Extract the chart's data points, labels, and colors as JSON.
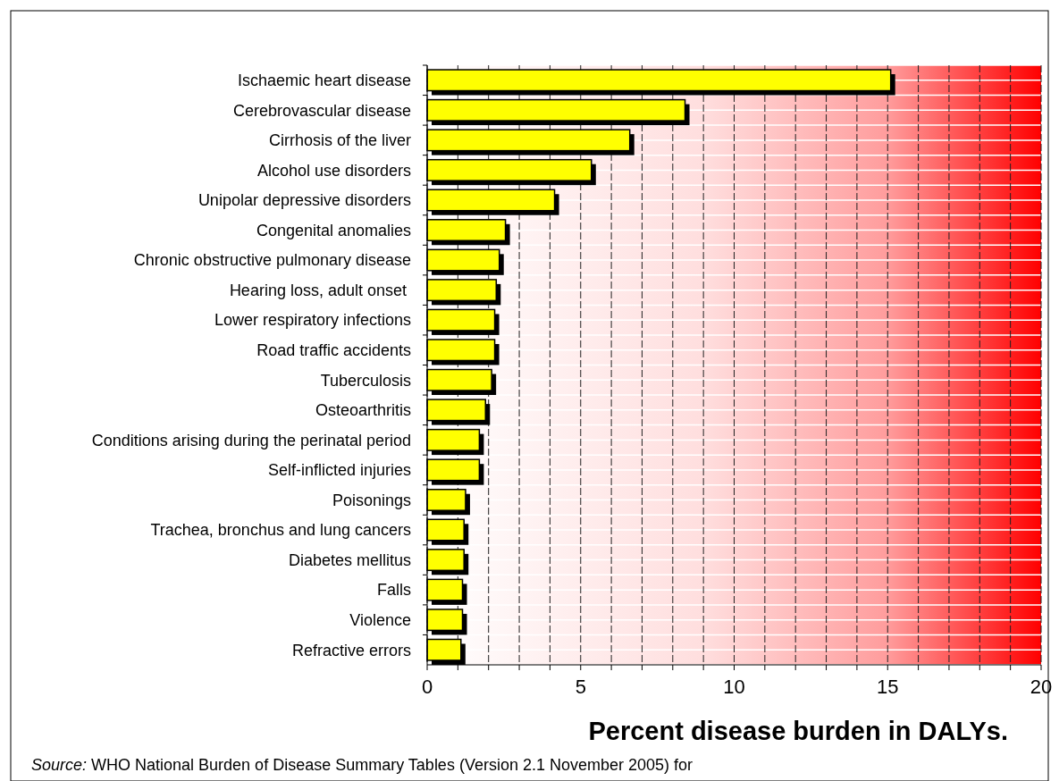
{
  "chart_data": {
    "type": "bar",
    "orientation": "horizontal",
    "xlabel": "Percent disease burden in DALYs.",
    "categories": [
      "Ischaemic heart disease",
      "Cerebrovascular disease",
      "Cirrhosis of the liver",
      "Alcohol use disorders",
      "Unipolar depressive disorders",
      "Congenital anomalies",
      "Chronic obstructive pulmonary disease",
      "Hearing loss, adult onset ",
      "Lower respiratory infections",
      "Road traffic accidents",
      "Tuberculosis",
      "Osteoarthritis",
      "Conditions arising during the perinatal period",
      "Self-inflicted injuries",
      "Poisonings",
      "Trachea, bronchus and lung cancers",
      "Diabetes mellitus",
      "Falls",
      "Violence",
      "Refractive errors"
    ],
    "values": [
      15.1,
      8.4,
      6.6,
      5.35,
      4.15,
      2.55,
      2.35,
      2.25,
      2.2,
      2.2,
      2.1,
      1.9,
      1.7,
      1.7,
      1.25,
      1.2,
      1.2,
      1.15,
      1.15,
      1.1
    ],
    "color": "#ffff00",
    "xlim": [
      0,
      20
    ],
    "xticks": [
      0,
      {
        "value": 1,
        "label": null
      },
      {
        "value": 2,
        "label": null
      },
      {
        "value": 3,
        "label": null
      },
      {
        "value": 4,
        "label": null
      },
      5,
      {
        "value": 6,
        "label": null
      },
      {
        "value": 7,
        "label": null
      },
      {
        "value": 8,
        "label": null
      },
      {
        "value": 9,
        "label": null
      },
      10,
      {
        "value": 11,
        "label": null
      },
      {
        "value": 12,
        "label": null
      },
      {
        "value": 13,
        "label": null
      },
      {
        "value": 14,
        "label": null
      },
      15,
      {
        "value": 16,
        "label": null
      },
      {
        "value": 17,
        "label": null
      },
      {
        "value": 18,
        "label": null
      },
      {
        "value": 19,
        "label": null
      },
      20
    ],
    "grid": true,
    "annotations": [
      "Source: WHO National Burden of Disease Summary Tables (Version 2.1 November 2005) for"
    ]
  }
}
